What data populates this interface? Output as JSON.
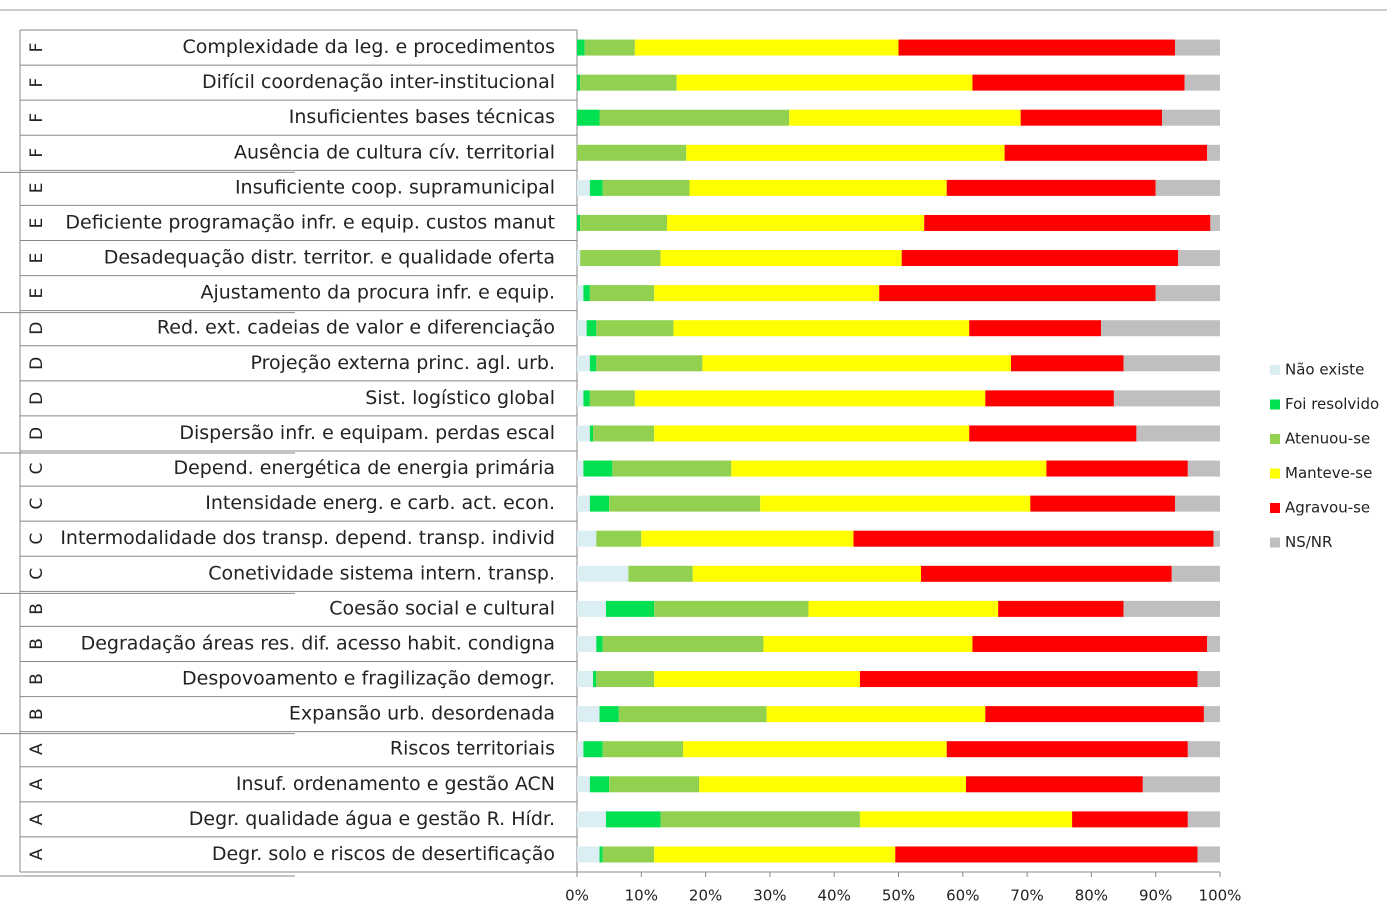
{
  "chart_data": {
    "type": "stacked_barh",
    "groups": [
      "F",
      "F",
      "F",
      "F",
      "E",
      "E",
      "E",
      "E",
      "D",
      "D",
      "D",
      "D",
      "C",
      "C",
      "C",
      "C",
      "B",
      "B",
      "B",
      "B",
      "A",
      "A",
      "A",
      "A"
    ],
    "categories": [
      "Complexidade da leg. e procedimentos",
      "Difícil coordenação inter-institucional",
      "Insuficientes bases técnicas",
      "Ausência de cultura cív. territorial",
      "Insuficiente coop. supramunicipal",
      "Deficiente programação infr. e equip. custos manut",
      "Desadequação distr. territor. e qualidade oferta",
      "Ajustamento da procura infr. e equip.",
      "Red. ext. cadeias de valor e diferenciação",
      "Projeção externa princ. agl. urb.",
      "Sist. logístico global",
      "Dispersão infr. e equipam. perdas escal",
      "Depend. energética de energia primária",
      "Intensidade energ. e carb. act. econ.",
      "Intermodalidade dos transp. depend. transp. individ",
      "Conetividade sistema intern. transp.",
      "Coesão social e cultural",
      "Degradação áreas res. dif. acesso habit. condigna",
      "Despovoamento e fragilização demogr.",
      "Expansão urb. desordenada",
      "Riscos territoriais",
      "Insuf. ordenamento e gestão ACN",
      "Degr. qualidade água e gestão R. Hídr.",
      "Degr. solo e riscos de desertificação"
    ],
    "series": [
      {
        "name": "Não existe",
        "color": "#daeef3",
        "values": [
          0,
          0,
          0,
          0,
          2,
          0,
          0.5,
          1,
          1.5,
          2,
          1,
          2,
          1,
          2,
          3,
          8,
          4.5,
          3,
          2.5,
          3.5,
          1,
          2,
          4.5,
          3.5
        ]
      },
      {
        "name": "Foi resolvido",
        "color": "#00e050",
        "values": [
          1.2,
          0.5,
          3.5,
          0,
          2,
          0.5,
          0,
          1,
          1.5,
          1,
          1,
          0.5,
          4.5,
          3,
          0,
          0,
          7.5,
          1,
          0.5,
          3,
          3,
          3,
          8.5,
          0.5
        ]
      },
      {
        "name": "Atenuou-se",
        "color": "#92d050",
        "values": [
          7.8,
          15,
          29.5,
          17,
          13.5,
          13.5,
          12.5,
          10,
          12,
          16.5,
          7,
          9.5,
          18.5,
          23.5,
          7,
          10,
          24,
          25,
          9,
          23,
          12.5,
          14,
          31,
          8
        ]
      },
      {
        "name": "Manteve-se",
        "color": "#ffff00",
        "values": [
          41,
          46,
          36,
          49.5,
          40,
          40,
          37.5,
          35,
          46,
          48,
          54.5,
          49,
          49,
          42,
          33,
          35.5,
          29.5,
          32.5,
          32,
          34,
          41,
          41.5,
          33,
          37.5
        ]
      },
      {
        "name": "Agravou-se",
        "color": "#ff0000",
        "values": [
          43,
          33,
          22,
          31.5,
          32.5,
          44.5,
          43,
          43,
          20.5,
          17.5,
          20,
          26,
          22,
          22.5,
          56,
          39,
          19.5,
          36.5,
          52.5,
          34,
          37.5,
          27.5,
          18,
          47
        ]
      },
      {
        "name": "NS/NR",
        "color": "#bfbfbf",
        "values": [
          7,
          5.5,
          9,
          2,
          10,
          1.5,
          6.5,
          10,
          18.5,
          15,
          16.5,
          13,
          5,
          7,
          1,
          7.5,
          15,
          2,
          3.5,
          2.5,
          5,
          12,
          5,
          3.5
        ]
      }
    ],
    "xlim": [
      0,
      100
    ],
    "xticks": [
      {
        "value": 0,
        "label": "0%"
      },
      {
        "value": 10,
        "label": "10%"
      },
      {
        "value": 20,
        "label": "20%"
      },
      {
        "value": 30,
        "label": "30%"
      },
      {
        "value": 40,
        "label": "40%"
      },
      {
        "value": 50,
        "label": "50%"
      },
      {
        "value": 60,
        "label": "60%"
      },
      {
        "value": 70,
        "label": "70%"
      },
      {
        "value": 80,
        "label": "80%"
      },
      {
        "value": 90,
        "label": "90%"
      },
      {
        "value": 100,
        "label": "100%"
      }
    ],
    "legend": "right"
  }
}
